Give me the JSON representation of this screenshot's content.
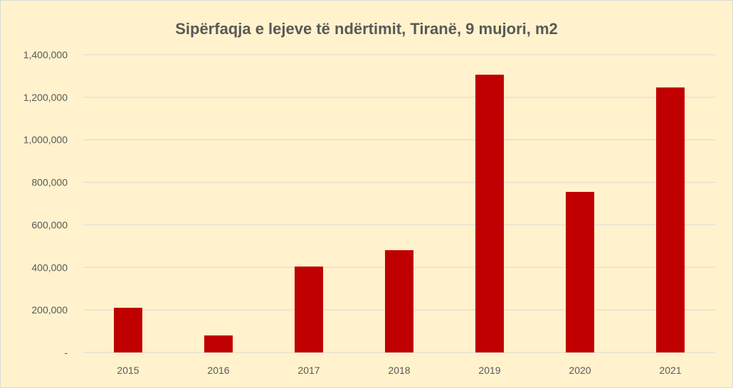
{
  "chart_data": {
    "type": "bar",
    "title": "Sipërfaqja e lejeve të ndërtimit, Tiranë, 9 mujori, m2",
    "xlabel": "",
    "ylabel": "",
    "categories": [
      "2015",
      "2016",
      "2017",
      "2018",
      "2019",
      "2020",
      "2021"
    ],
    "values": [
      210000,
      80000,
      404000,
      481000,
      1306000,
      755000,
      1246000
    ],
    "ylim": [
      0,
      1400000
    ],
    "yticks": [
      0,
      200000,
      400000,
      600000,
      800000,
      1000000,
      1200000,
      1400000
    ],
    "ytick_labels": [
      "-",
      "200,000",
      "400,000",
      "600,000",
      "800,000",
      "1,000,000",
      "1,200,000",
      "1,400,000"
    ],
    "grid": true,
    "legend": "none",
    "colors": {
      "bar": "#C00000",
      "background": "#FFF2CC",
      "grid": "#D9D9D9",
      "text": "#595959"
    }
  }
}
